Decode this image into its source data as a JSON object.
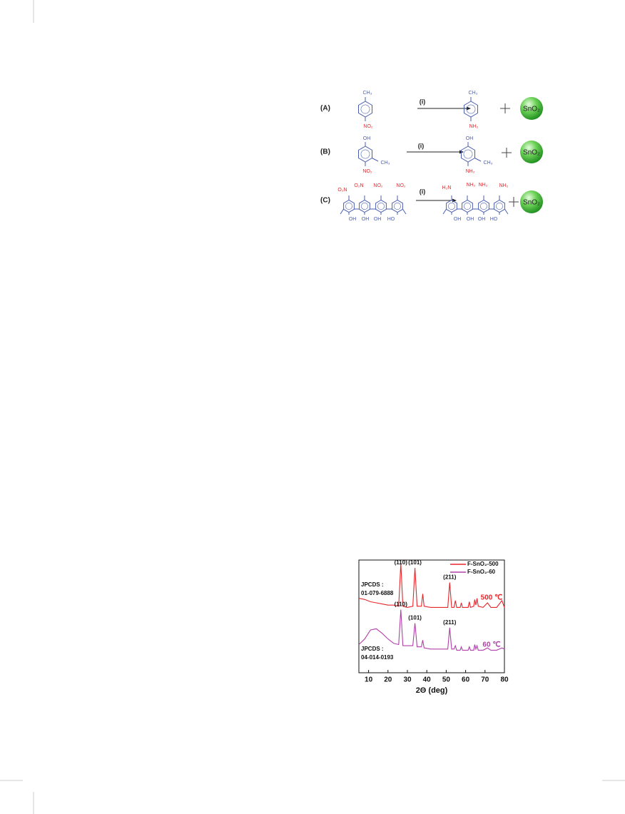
{
  "scheme": {
    "rows": [
      {
        "label": "(A)",
        "reactant": [
          "CH₃",
          "NO₂"
        ],
        "reagent": "(i)",
        "product": [
          "CH₃",
          "NH₂"
        ],
        "catalyst": "SnO₂"
      },
      {
        "label": "(B)",
        "reactant": [
          "OH",
          "NO₂",
          "CH₃"
        ],
        "reagent": "(i)",
        "product": [
          "OH",
          "NH₂",
          "CH₃"
        ],
        "catalyst": "SnO₂"
      },
      {
        "label": "(C)",
        "reactant": [
          "O₂N",
          "O₂N",
          "NO₂",
          "NO₂",
          "OH",
          "OH",
          "OH",
          "HO"
        ],
        "reagent": "(i)",
        "product": [
          "H₂N",
          "NH₂",
          "NH₂",
          "NH₂",
          "OH",
          "OH",
          "OH",
          "HO"
        ],
        "catalyst": "SnO₂"
      }
    ]
  },
  "chart_data": {
    "type": "line",
    "xlabel": "2Θ (deg)",
    "x": [
      5,
      8,
      11,
      14,
      17,
      20,
      23,
      25.5,
      26.6,
      27.7,
      30,
      32.8,
      33.9,
      35,
      37.2,
      37.9,
      38.6,
      42,
      46,
      50.8,
      51.8,
      52.8,
      54,
      54.7,
      55.4,
      57.2,
      57.8,
      58.4,
      61.3,
      61.9,
      62.5,
      64.2,
      64.7,
      65.3,
      65.9,
      66.5,
      69,
      71.3,
      73,
      76,
      78.7,
      80
    ],
    "series": [
      {
        "name": "F-SnO₂-500",
        "color": "#e8262a",
        "values": [
          66,
          65,
          63,
          62,
          61,
          60,
          60,
          59,
          97,
          59,
          58,
          59,
          93,
          59,
          59,
          70,
          59,
          58,
          58,
          58,
          80,
          58,
          58,
          64,
          58,
          58,
          62,
          58,
          58,
          63,
          58,
          59,
          65,
          60,
          66,
          59,
          58,
          62,
          58,
          58,
          64,
          58
        ],
        "peak_labels": [
          {
            "text": "(110)",
            "x": 26.6
          },
          {
            "text": "(101)",
            "x": 33.9
          },
          {
            "text": "(211)",
            "x": 51.8
          }
        ]
      },
      {
        "name": "F-SnO₂-60",
        "color": "#b040a8",
        "values": [
          25,
          30,
          38,
          39,
          35,
          30,
          26,
          25,
          56,
          24,
          24,
          24,
          44,
          23,
          23,
          29,
          22,
          21,
          21,
          21,
          40,
          21,
          21,
          24,
          20,
          20,
          23,
          20,
          20,
          23,
          20,
          20,
          25,
          21,
          24,
          20,
          20,
          22,
          20,
          20,
          22,
          21
        ],
        "peak_labels": [
          {
            "text": "(110)",
            "x": 26.6
          },
          {
            "text": "(101)",
            "x": 33.9
          },
          {
            "text": "(211)",
            "x": 51.8
          }
        ]
      }
    ],
    "annotations": [
      "JPCDS :",
      "01-079-6888",
      "500 ℃",
      "JPCDS :",
      "04-014-0193",
      "60 ℃"
    ],
    "xlim": [
      5,
      80
    ],
    "xticks": [
      10,
      20,
      30,
      40,
      50,
      60,
      70,
      80
    ],
    "ylim": [
      0,
      100
    ],
    "legend": "upper right"
  }
}
